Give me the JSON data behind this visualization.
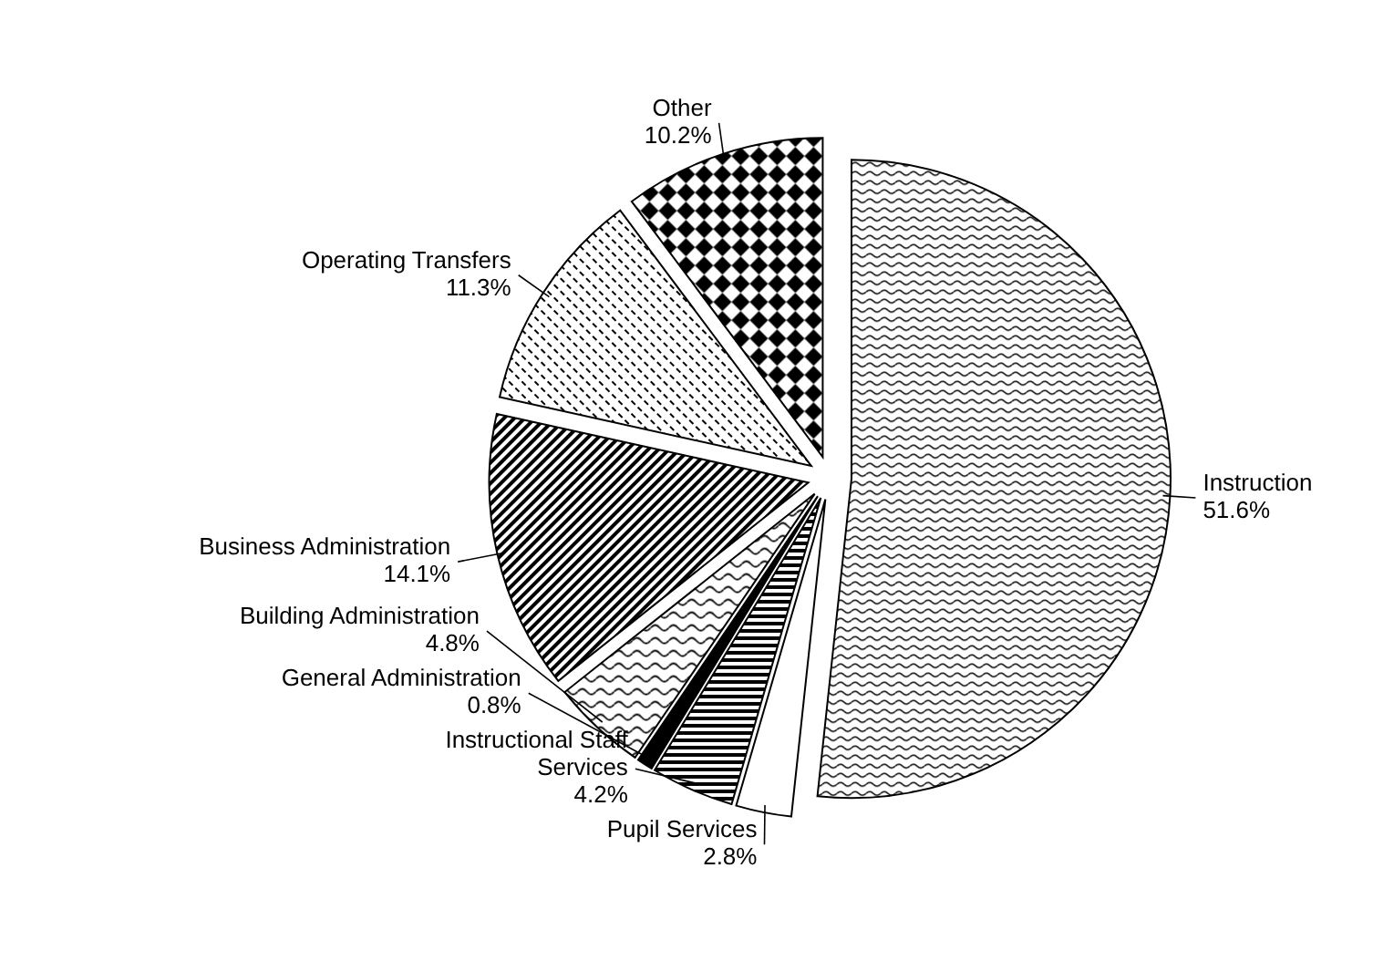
{
  "chart_data": {
    "type": "pie",
    "categories": [
      "Instruction",
      "Pupil Services",
      "Instructional Staff Services",
      "General Administration",
      "Building Administration",
      "Business Administration",
      "Operating Transfers",
      "Other"
    ],
    "values": [
      51.6,
      2.8,
      4.2,
      0.8,
      4.8,
      14.1,
      11.3,
      10.2
    ],
    "value_labels": [
      "51.6%",
      "2.8%",
      "4.2%",
      "0.8%",
      "4.8%",
      "14.1%",
      "11.3%",
      "10.2%"
    ],
    "colors": [
      "#000000",
      "#ffffff",
      "#000000",
      "#000000",
      "#000000",
      "#000000",
      "#000000",
      "#000000"
    ]
  }
}
